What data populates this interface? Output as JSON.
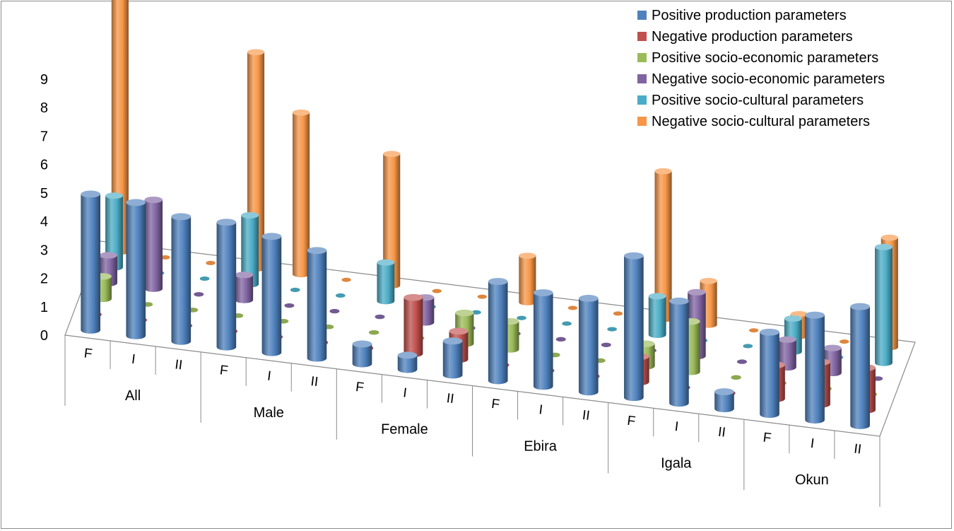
{
  "chart_data": {
    "type": "bar",
    "subtype": "3d-cylinder",
    "title": "",
    "xlabel": "",
    "ylabel": "",
    "ylim": [
      0,
      9
    ],
    "yticks": [
      "0",
      "1",
      "2",
      "3",
      "4",
      "5",
      "6",
      "7",
      "8",
      "9"
    ],
    "groups": [
      "All",
      "Male",
      "Female",
      "Ebira",
      "Igala",
      "Okun"
    ],
    "subcategories": [
      "F",
      "I",
      "II"
    ],
    "legend_position": "top-right",
    "series": [
      {
        "name": "Positive production parameters",
        "color": "#4f81bd",
        "values": [
          4.8,
          4.7,
          4.4,
          4.4,
          4.1,
          3.8,
          0.7,
          0.5,
          1.2,
          3.5,
          3.3,
          3.3,
          5.0,
          3.6,
          0.6,
          2.9,
          3.7,
          4.2
        ]
      },
      {
        "name": "Negative production parameters",
        "color": "#c0504d",
        "values": [
          0,
          0,
          0,
          0,
          0,
          0,
          0,
          2.0,
          1.0,
          0,
          0,
          0,
          0.9,
          0,
          0,
          1.2,
          1.5,
          1.5
        ]
      },
      {
        "name": "Positive socio-economic parameters",
        "color": "#9bbb59",
        "values": [
          0.8,
          0,
          0,
          0,
          0,
          0,
          0,
          0,
          1.1,
          1.0,
          0,
          0,
          0.8,
          1.8,
          0,
          0,
          0,
          0
        ]
      },
      {
        "name": "Negative socio-economic parameters",
        "color": "#8064a2",
        "values": [
          1.0,
          3.2,
          0,
          0.9,
          0,
          0,
          0,
          0.9,
          0,
          0,
          0,
          0,
          0,
          2.3,
          0,
          1.0,
          0.9,
          0
        ]
      },
      {
        "name": "Positive socio-cultural parameters",
        "color": "#4bacc6",
        "values": [
          2.6,
          0,
          0,
          2.5,
          0,
          0,
          1.4,
          0,
          0,
          0,
          0,
          0,
          1.4,
          0,
          0,
          1.2,
          0,
          4.2
        ]
      },
      {
        "name": "Negative socio-cultural parameters",
        "color": "#f79646",
        "values": [
          9.3,
          0,
          0,
          7.9,
          5.9,
          0,
          4.8,
          0,
          0,
          1.7,
          0,
          0,
          5.4,
          1.6,
          0,
          0.8,
          0,
          4.0
        ]
      }
    ]
  }
}
